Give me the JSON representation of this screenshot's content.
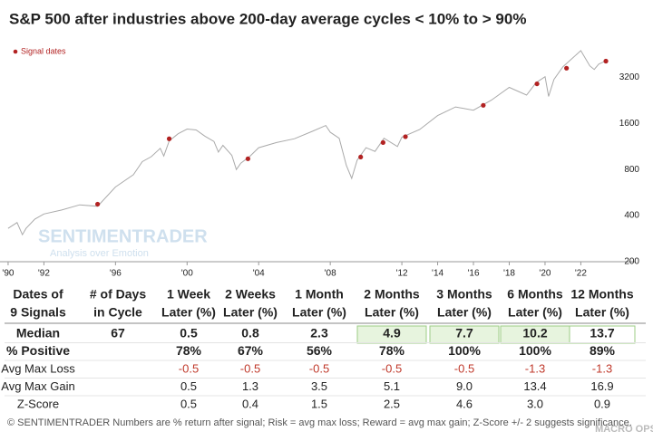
{
  "chart_data": {
    "type": "line",
    "title": "S&P 500 after industries above 200-day average cycles < 10% to > 90%",
    "log_scale": true,
    "xlim": [
      1989.8,
      2023.6
    ],
    "xticks": [
      {
        "value": 1990,
        "label": "'90"
      },
      {
        "value": 1992,
        "label": "'92"
      },
      {
        "value": 1996,
        "label": "'96"
      },
      {
        "value": 2000,
        "label": "'00"
      },
      {
        "value": 2004,
        "label": "'04"
      },
      {
        "value": 2008,
        "label": "'08"
      },
      {
        "value": 2012,
        "label": "'12"
      },
      {
        "value": 2014,
        "label": "'14"
      },
      {
        "value": 2016,
        "label": "'16"
      },
      {
        "value": 2018,
        "label": "'18"
      },
      {
        "value": 2020,
        "label": "'20"
      },
      {
        "value": 2022,
        "label": "'22"
      }
    ],
    "ylim": [
      200,
      6800
    ],
    "yticks": [
      200,
      400,
      800,
      1600,
      3200
    ],
    "legend": "top-left",
    "series": [
      {
        "name": "S&P 500",
        "type": "line",
        "color": "#aaaaaa",
        "x": [
          1990,
          1990.5,
          1990.8,
          1991,
          1991.5,
          1992,
          1993,
          1994,
          1995,
          1996,
          1997,
          1997.5,
          1998,
          1998.5,
          1998.7,
          1999,
          1999.5,
          2000,
          2000.5,
          2001,
          2001.5,
          2001.75,
          2002,
          2002.5,
          2002.75,
          2003,
          2003.5,
          2004,
          2005,
          2006,
          2007,
          2007.75,
          2008,
          2008.5,
          2008.9,
          2009.2,
          2009.5,
          2010,
          2010.5,
          2011,
          2011.75,
          2012,
          2013,
          2014,
          2015,
          2016,
          2017,
          2018,
          2018.97,
          2019.5,
          2020,
          2020.2,
          2020.5,
          2021,
          2022,
          2022.5,
          2022.75,
          2023,
          2023.4
        ],
        "values": [
          330,
          360,
          300,
          330,
          380,
          410,
          435,
          470,
          460,
          615,
          740,
          900,
          970,
          1100,
          980,
          1230,
          1370,
          1470,
          1450,
          1320,
          1220,
          1040,
          1150,
          990,
          800,
          880,
          975,
          1110,
          1200,
          1270,
          1420,
          1550,
          1400,
          1280,
          850,
          700,
          920,
          1110,
          1050,
          1280,
          1130,
          1300,
          1460,
          1800,
          2050,
          1950,
          2270,
          2750,
          2450,
          2950,
          3230,
          2400,
          3100,
          3750,
          4780,
          3800,
          3600,
          3900,
          4100
        ]
      },
      {
        "name": "Signal dates",
        "type": "scatter",
        "color": "#b22222",
        "x": [
          1995.0,
          1999.0,
          2003.4,
          2009.7,
          2010.95,
          2012.2,
          2016.55,
          2019.55,
          2021.2,
          2023.4
        ],
        "values": [
          475,
          1270,
          940,
          965,
          1200,
          1310,
          2100,
          2900,
          3670,
          4080
        ]
      }
    ]
  },
  "watermarks": {
    "logo": "SENTIMENTRADER",
    "tagline": "Analysis over Emotion",
    "corner": "MACRO OPS"
  },
  "table": {
    "columns": [
      [
        "Dates of",
        "9 Signals"
      ],
      [
        "# of Days",
        "in Cycle"
      ],
      [
        "1 Week",
        "Later (%)"
      ],
      [
        "2 Weeks",
        "Later (%)"
      ],
      [
        "1 Month",
        "Later (%)"
      ],
      [
        "2 Months",
        "Later (%)"
      ],
      [
        "3 Months",
        "Later (%)"
      ],
      [
        "6 Months",
        "Later (%)"
      ],
      [
        "12 Months",
        "Later (%)"
      ]
    ],
    "rows": [
      {
        "label": "Median",
        "bold": true,
        "cells": [
          "67",
          "0.5",
          "0.8",
          "2.3",
          "4.9",
          "7.7",
          "10.2",
          "13.7"
        ],
        "highlight": [
          4,
          5,
          6
        ],
        "outline": [
          7
        ]
      },
      {
        "label": "% Positive",
        "bold": true,
        "cells": [
          null,
          "78%",
          "67%",
          "56%",
          "78%",
          "100%",
          "100%",
          "89%"
        ]
      },
      {
        "label": "Avg Max Loss",
        "color": "#c0392b",
        "cells": [
          null,
          "-0.5",
          "-0.5",
          "-0.5",
          "-0.5",
          "-0.5",
          "-1.3",
          "-1.3"
        ]
      },
      {
        "label": "Avg Max Gain",
        "cells": [
          null,
          "0.5",
          "1.3",
          "3.5",
          "5.1",
          "9.0",
          "13.4",
          "16.9"
        ]
      },
      {
        "label": "Z-Score",
        "cells": [
          null,
          "0.5",
          "0.4",
          "1.5",
          "2.5",
          "4.6",
          "3.0",
          "0.9"
        ]
      }
    ],
    "footnote": "© SENTIMENTRADER  Numbers are % return after signal; Risk = avg max loss; Reward = avg max gain; Z-Score +/- 2 suggests significance."
  }
}
